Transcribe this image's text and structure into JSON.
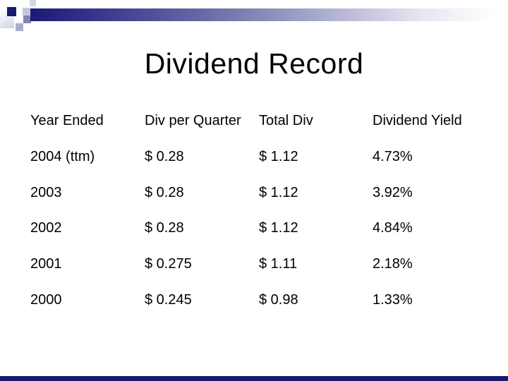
{
  "slide": {
    "title": "Dividend Record",
    "table": {
      "headers": [
        "Year Ended",
        "Div per Quarter",
        "Total Div",
        "Dividend Yield"
      ],
      "rows": [
        [
          "2004 (ttm)",
          "$ 0.28",
          "$ 1.12",
          "4.73%"
        ],
        [
          "2003",
          "$ 0.28",
          "$ 1.12",
          "3.92%"
        ],
        [
          "2002",
          "$ 0.28",
          "$ 1.12",
          "4.84%"
        ],
        [
          "2001",
          "$ 0.275",
          "$ 1.11",
          "2.18%"
        ],
        [
          "2000",
          "$ 0.245",
          "$ 0.98",
          "1.33%"
        ]
      ]
    },
    "colors": {
      "accent_navy": "#191970",
      "bar_gradient_start": "#1b1b76",
      "bar_gradient_end": "#ffffff",
      "text": "#000000",
      "background": "#ffffff"
    }
  }
}
